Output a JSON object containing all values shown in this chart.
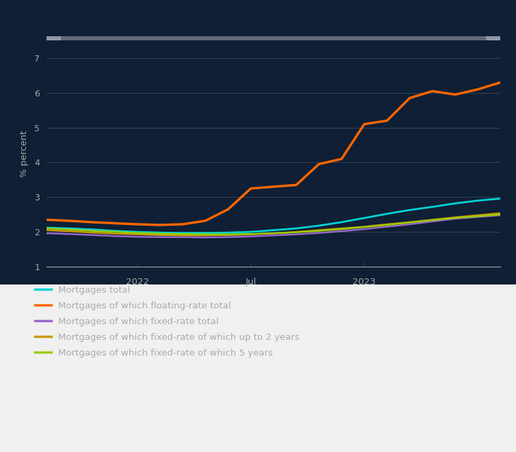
{
  "background_color": "#0f1f35",
  "plot_bg_color": "#0f1f35",
  "legend_bg_color": "#f0f0f0",
  "ylabel": "% percent",
  "ylim": [
    1,
    7.5
  ],
  "yticks": [
    1,
    2,
    3,
    4,
    5,
    6,
    7
  ],
  "grid_color": "#3a4a60",
  "tick_label_color": "#aaaaaa",
  "axis_label_color": "#aaaaaa",
  "series": {
    "mortgages_total": {
      "label": "Mortgages total",
      "color": "#00d4d4",
      "linewidth": 2.0,
      "data_x": [
        0,
        1,
        2,
        3,
        4,
        5,
        6,
        7,
        8,
        9,
        10,
        11,
        12,
        13,
        14,
        15,
        16,
        17,
        18,
        19,
        20
      ],
      "data_y": [
        2.12,
        2.1,
        2.07,
        2.03,
        2.0,
        1.98,
        1.97,
        1.97,
        1.98,
        2.0,
        2.05,
        2.1,
        2.18,
        2.28,
        2.4,
        2.52,
        2.63,
        2.72,
        2.82,
        2.9,
        2.96
      ]
    },
    "floating_rate_total": {
      "label": "Mortgages of which floating-rate total",
      "color": "#ff6600",
      "linewidth": 2.5,
      "data_x": [
        0,
        1,
        2,
        3,
        4,
        5,
        6,
        7,
        8,
        9,
        10,
        11,
        12,
        13,
        14,
        15,
        16,
        17,
        18,
        19,
        20
      ],
      "data_y": [
        2.35,
        2.32,
        2.28,
        2.25,
        2.22,
        2.2,
        2.22,
        2.32,
        2.65,
        3.25,
        3.3,
        3.35,
        3.95,
        4.1,
        5.1,
        5.2,
        5.85,
        6.05,
        5.95,
        6.1,
        6.3
      ]
    },
    "fixed_rate_total": {
      "label": "Mortgages of which fixed-rate total",
      "color": "#9966cc",
      "linewidth": 1.8,
      "data_x": [
        0,
        1,
        2,
        3,
        4,
        5,
        6,
        7,
        8,
        9,
        10,
        11,
        12,
        13,
        14,
        15,
        16,
        17,
        18,
        19,
        20
      ],
      "data_y": [
        1.96,
        1.94,
        1.91,
        1.88,
        1.86,
        1.85,
        1.85,
        1.84,
        1.85,
        1.87,
        1.9,
        1.93,
        1.97,
        2.02,
        2.08,
        2.15,
        2.22,
        2.3,
        2.38,
        2.43,
        2.48
      ]
    },
    "fixed_2yr": {
      "label": "Mortgages of which fixed-rate of which up to 2 years",
      "color": "#cc9900",
      "linewidth": 1.8,
      "data_x": [
        0,
        1,
        2,
        3,
        4,
        5,
        6,
        7,
        8,
        9,
        10,
        11,
        12,
        13,
        14,
        15,
        16,
        17,
        18,
        19,
        20
      ],
      "data_y": [
        2.05,
        2.02,
        1.98,
        1.95,
        1.93,
        1.91,
        1.9,
        1.9,
        1.91,
        1.93,
        1.96,
        2.0,
        2.05,
        2.1,
        2.15,
        2.22,
        2.28,
        2.35,
        2.42,
        2.48,
        2.54
      ]
    },
    "fixed_5yr": {
      "label": "Mortgages of which fixed-rate of which 5 years",
      "color": "#99cc00",
      "linewidth": 1.8,
      "data_x": [
        0,
        1,
        2,
        3,
        4,
        5,
        6,
        7,
        8,
        9,
        10,
        11,
        12,
        13,
        14,
        15,
        16,
        17,
        18,
        19,
        20
      ],
      "data_y": [
        2.1,
        2.07,
        2.03,
        2.0,
        1.97,
        1.95,
        1.94,
        1.93,
        1.93,
        1.94,
        1.96,
        1.99,
        2.03,
        2.08,
        2.14,
        2.2,
        2.27,
        2.34,
        2.4,
        2.45,
        2.5
      ]
    }
  },
  "xtick_positions": [
    4,
    9,
    14,
    17
  ],
  "xtick_labels": [
    "2022",
    "Jul",
    "2023",
    ""
  ],
  "scrollbar_track_color": "#606878",
  "scrollbar_handle_color": "#9098a8",
  "legend_text_color": "#aaaaaa"
}
